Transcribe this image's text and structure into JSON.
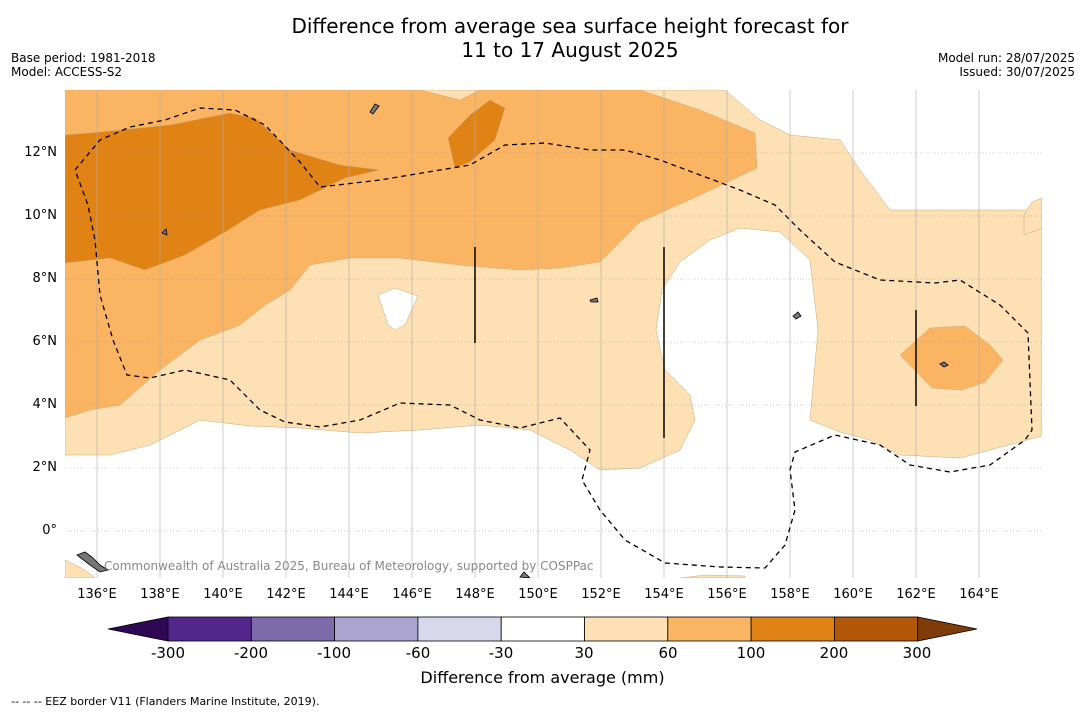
{
  "title_line1": "Difference from average sea surface height forecast for",
  "title_line2": "11 to 17 August 2025",
  "base_period": "Base period: 1981-2018",
  "model": "Model: ACCESS-S2",
  "model_run": "Model run: 28/07/2025",
  "issued": "Issued: 30/07/2025",
  "copyright": "Commonwealth of Australia 2025, Bureau of Meteorology, supported by COSPPac",
  "lat_labels": [
    "12°N",
    "10°N",
    "8°N",
    "6°N",
    "4°N",
    "2°N",
    "0°"
  ],
  "lon_labels": [
    "136°E",
    "138°E",
    "140°E",
    "142°E",
    "144°E",
    "146°E",
    "148°E",
    "150°E",
    "152°E",
    "154°E",
    "156°E",
    "158°E",
    "160°E",
    "162°E",
    "164°E"
  ],
  "colorbar": {
    "label": "Difference from average (mm)",
    "ticks": [
      "-300",
      "-200",
      "-100",
      "-60",
      "-30",
      "30",
      "60",
      "100",
      "200",
      "300"
    ],
    "colors": [
      "#2e0854",
      "#54278f",
      "#7d6aab",
      "#aba4d0",
      "#d8d8ec",
      "#ffffff",
      "#fde0b4",
      "#fbb562",
      "#e08214",
      "#b35806",
      "#7f3b08"
    ]
  },
  "footnote": "--  --  -- EEZ border V11 (Flanders Marine Institute, 2019)."
}
